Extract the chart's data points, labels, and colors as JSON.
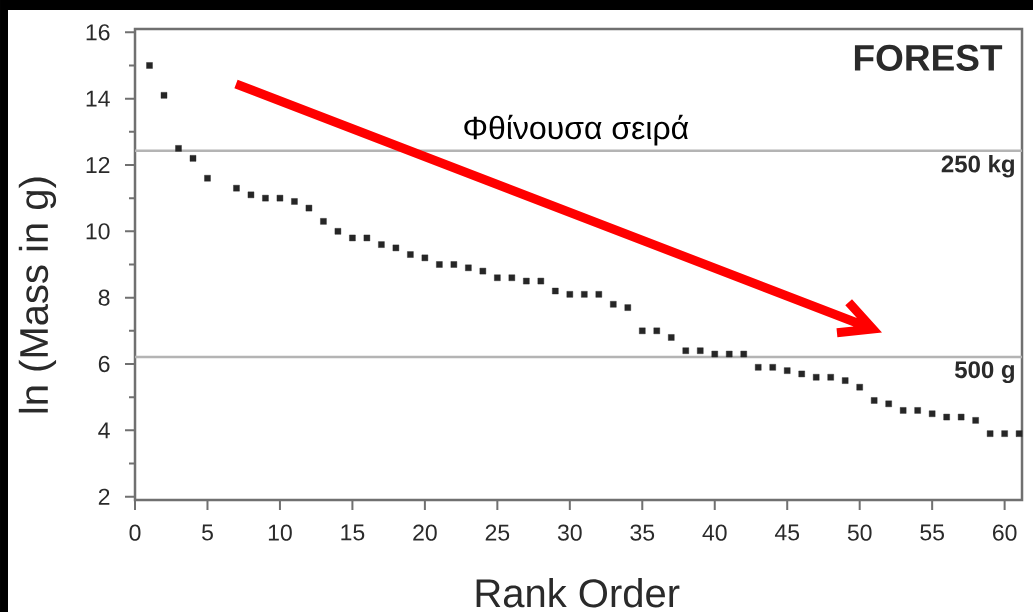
{
  "chart_data": {
    "type": "scatter",
    "title": "FOREST",
    "xlabel": "Rank Order",
    "ylabel": "ln (Mass in g)",
    "x": [
      1,
      2,
      3,
      4,
      5,
      7,
      8,
      9,
      10,
      11,
      12,
      13,
      14,
      15,
      16,
      17,
      18,
      19,
      20,
      21,
      22,
      23,
      24,
      25,
      26,
      27,
      28,
      29,
      30,
      31,
      32,
      33,
      34,
      35,
      36,
      37,
      38,
      39,
      40,
      41,
      42,
      43,
      44,
      45,
      46,
      47,
      48,
      49,
      50,
      51,
      52,
      53,
      54,
      55,
      56,
      57,
      58,
      59,
      60,
      61
    ],
    "values": [
      15.0,
      14.1,
      12.5,
      12.2,
      11.6,
      11.3,
      11.1,
      11.0,
      11.0,
      10.9,
      10.7,
      10.3,
      10.0,
      9.8,
      9.8,
      9.6,
      9.5,
      9.3,
      9.2,
      9.0,
      9.0,
      8.9,
      8.8,
      8.6,
      8.6,
      8.5,
      8.5,
      8.2,
      8.1,
      8.1,
      8.1,
      7.8,
      7.7,
      7.0,
      7.0,
      6.8,
      6.4,
      6.4,
      6.3,
      6.3,
      6.3,
      5.9,
      5.9,
      5.8,
      5.7,
      5.6,
      5.6,
      5.5,
      5.3,
      4.9,
      4.8,
      4.6,
      4.6,
      4.5,
      4.4,
      4.4,
      4.3,
      3.9,
      3.9,
      3.9
    ],
    "color": "#262626",
    "marker": "square",
    "xlim": [
      0,
      61.2
    ],
    "ylim": [
      1.9,
      16.1
    ],
    "xticks": [
      0,
      5,
      10,
      15,
      20,
      25,
      30,
      35,
      40,
      45,
      50,
      55,
      60
    ],
    "yticks": [
      2,
      {
        "value": 3,
        "label": null
      },
      4,
      {
        "value": 5,
        "label": null
      },
      6,
      {
        "value": 7,
        "label": null
      },
      8,
      {
        "value": 9,
        "label": null
      },
      10,
      {
        "value": 11,
        "label": null
      },
      12,
      {
        "value": 13,
        "label": null
      },
      14,
      {
        "value": 15,
        "label": null
      },
      16
    ],
    "ref_lines": [
      {
        "axis": "y",
        "value": 12.43,
        "label": "250 kg",
        "color": "#b4b4b4"
      },
      {
        "axis": "y",
        "value": 6.21,
        "label": "500 g",
        "color": "#b4b4b4"
      }
    ],
    "annotations": [
      "Φθίνουσα σειρά"
    ]
  }
}
